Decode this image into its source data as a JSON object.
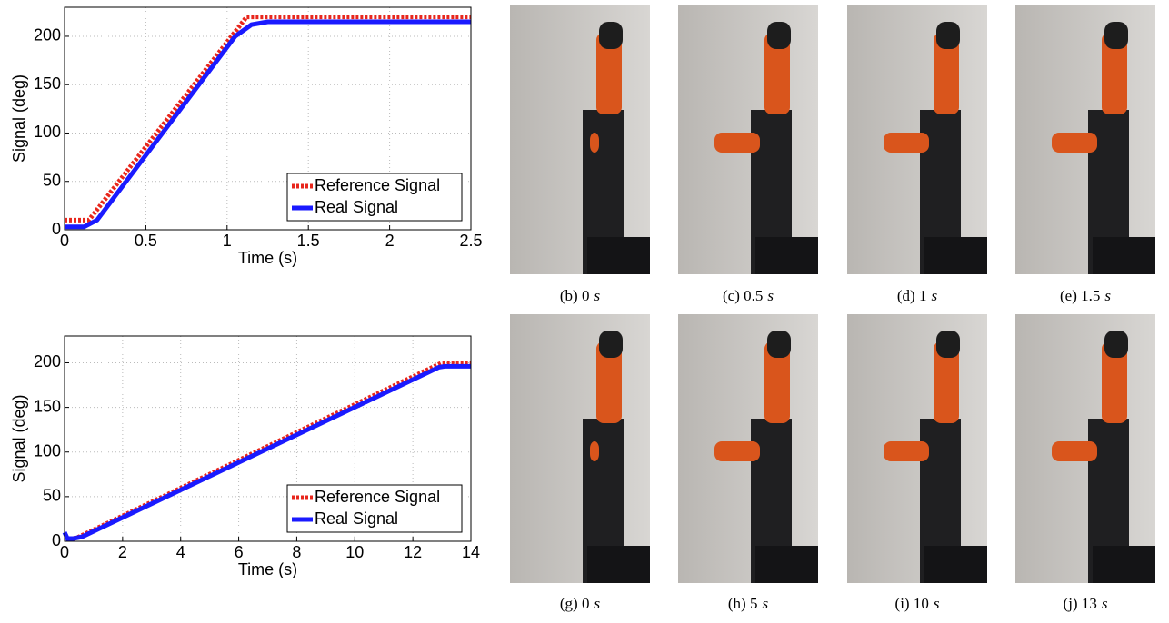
{
  "chart_data": [
    {
      "type": "line",
      "xlabel": "Time (s)",
      "ylabel": "Signal (deg)",
      "xlim": [
        0,
        2.5
      ],
      "xticks": [
        0,
        0.5,
        1,
        1.5,
        2,
        2.5
      ],
      "ylim": [
        0,
        230
      ],
      "yticks": [
        0,
        50,
        100,
        150,
        200
      ],
      "grid": true,
      "legend": "lower right",
      "series": [
        {
          "name": "Reference Signal",
          "color": "#e8261c",
          "dash": true,
          "x": [
            0,
            0.15,
            1.12,
            2.5
          ],
          "values": [
            10,
            10,
            220,
            220
          ]
        },
        {
          "name": "Real Signal",
          "color": "#1a1aff",
          "dash": false,
          "x": [
            0,
            0.12,
            0.2,
            1.05,
            1.15,
            1.25,
            2.5
          ],
          "values": [
            3,
            3,
            10,
            200,
            212,
            215,
            215
          ]
        }
      ]
    },
    {
      "type": "line",
      "xlabel": "Time (s)",
      "ylabel": "Signal (deg)",
      "xlim": [
        0,
        14
      ],
      "xticks": [
        0,
        2,
        4,
        6,
        8,
        10,
        12,
        14
      ],
      "ylim": [
        0,
        230
      ],
      "yticks": [
        0,
        50,
        100,
        150,
        200
      ],
      "grid": true,
      "legend": "lower right",
      "series": [
        {
          "name": "Reference Signal",
          "color": "#e8261c",
          "dash": true,
          "x": [
            0.3,
            0.5,
            13,
            14
          ],
          "values": [
            3,
            5,
            200,
            200
          ]
        },
        {
          "name": "Real Signal",
          "color": "#1a1aff",
          "dash": false,
          "x": [
            0,
            0.1,
            0.3,
            0.6,
            12.9,
            13.1,
            14
          ],
          "values": [
            10,
            3,
            3,
            5,
            195,
            196,
            196
          ]
        }
      ]
    }
  ],
  "photos": [
    {
      "label": "(b) 0",
      "unit": "s"
    },
    {
      "label": "(c) 0.5",
      "unit": "s"
    },
    {
      "label": "(d) 1",
      "unit": "s"
    },
    {
      "label": "(e) 1.5",
      "unit": "s"
    },
    {
      "label": "(g) 0",
      "unit": "s"
    },
    {
      "label": "(h) 5",
      "unit": "s"
    },
    {
      "label": "(i) 10",
      "unit": "s"
    },
    {
      "label": "(j) 13",
      "unit": "s"
    }
  ]
}
